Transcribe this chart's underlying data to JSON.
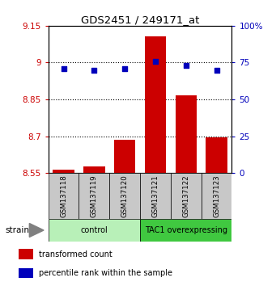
{
  "title": "GDS2451 / 249171_at",
  "samples": [
    "GSM137118",
    "GSM137119",
    "GSM137120",
    "GSM137121",
    "GSM137122",
    "GSM137123"
  ],
  "groups": [
    {
      "name": "control",
      "samples_idx": [
        0,
        1,
        2
      ],
      "color": "#b8f0b8"
    },
    {
      "name": "TAC1 overexpressing",
      "samples_idx": [
        3,
        4,
        5
      ],
      "color": "#40c840"
    }
  ],
  "bar_values": [
    8.565,
    8.578,
    8.685,
    9.108,
    8.865,
    8.695
  ],
  "dot_values": [
    71,
    70,
    71,
    76,
    73,
    70
  ],
  "ylim_left": [
    8.55,
    9.15
  ],
  "ylim_right": [
    0,
    100
  ],
  "yticks_left": [
    8.55,
    8.7,
    8.85,
    9.0,
    9.15
  ],
  "ytick_labels_left": [
    "8.55",
    "8.7",
    "8.85",
    "9",
    "9.15"
  ],
  "yticks_right": [
    0,
    25,
    50,
    75,
    100
  ],
  "ytick_labels_right": [
    "0",
    "25",
    "50",
    "75",
    "100%"
  ],
  "hline_positions": [
    9.0,
    8.85,
    8.7
  ],
  "bar_color": "#cc0000",
  "dot_color": "#0000bb",
  "bar_bottom": 8.55,
  "bar_width": 0.7,
  "ylabel_left_color": "#cc0000",
  "ylabel_right_color": "#0000bb",
  "sample_box_color": "#c8c8c8",
  "legend_items": [
    {
      "color": "#cc0000",
      "label": "transformed count"
    },
    {
      "color": "#0000bb",
      "label": "percentile rank within the sample"
    }
  ],
  "figsize": [
    3.41,
    3.54
  ],
  "dpi": 100
}
